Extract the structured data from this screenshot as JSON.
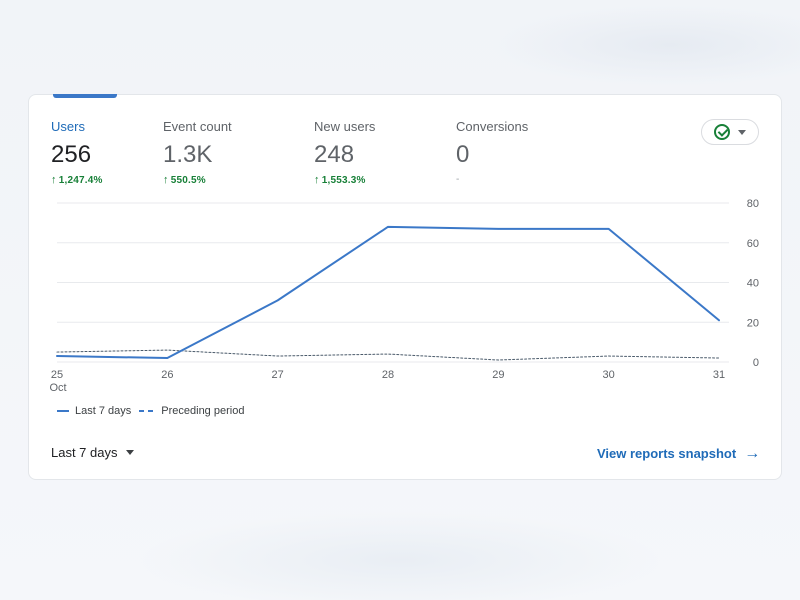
{
  "metrics": [
    {
      "label": "Users",
      "value": "256",
      "change": "1,247.4%",
      "active": true
    },
    {
      "label": "Event count",
      "value": "1.3K",
      "change": "550.5%",
      "active": false
    },
    {
      "label": "New users",
      "value": "248",
      "change": "1,553.3%",
      "active": false
    },
    {
      "label": "Conversions",
      "value": "0",
      "change": "-",
      "active": false
    }
  ],
  "status_icons": {
    "check": "check-circle-icon",
    "caret": "caret-down-icon"
  },
  "chart_data": {
    "type": "line",
    "categories": [
      "25",
      "26",
      "27",
      "28",
      "29",
      "30",
      "31"
    ],
    "x_sublabels": {
      "25": "Oct"
    },
    "series": [
      {
        "name": "Last 7 days",
        "values": [
          3,
          2,
          31,
          68,
          67,
          67,
          21
        ],
        "style": "solid",
        "color": "#3b78c8"
      },
      {
        "name": "Preceding period",
        "values": [
          5,
          6,
          3,
          4,
          1,
          3,
          2
        ],
        "style": "dashed",
        "color": "#3b78c8"
      }
    ],
    "y_ticks": [
      0,
      20,
      40,
      60,
      80
    ],
    "ylim": [
      0,
      80
    ],
    "grid": true,
    "y_axis_position": "right",
    "legend_position": "bottom-left"
  },
  "legend": {
    "current": "Last 7 days",
    "previous": "Preceding period"
  },
  "footer": {
    "range_label": "Last 7 days",
    "snapshot_link": "View reports snapshot",
    "arrow": "→"
  }
}
